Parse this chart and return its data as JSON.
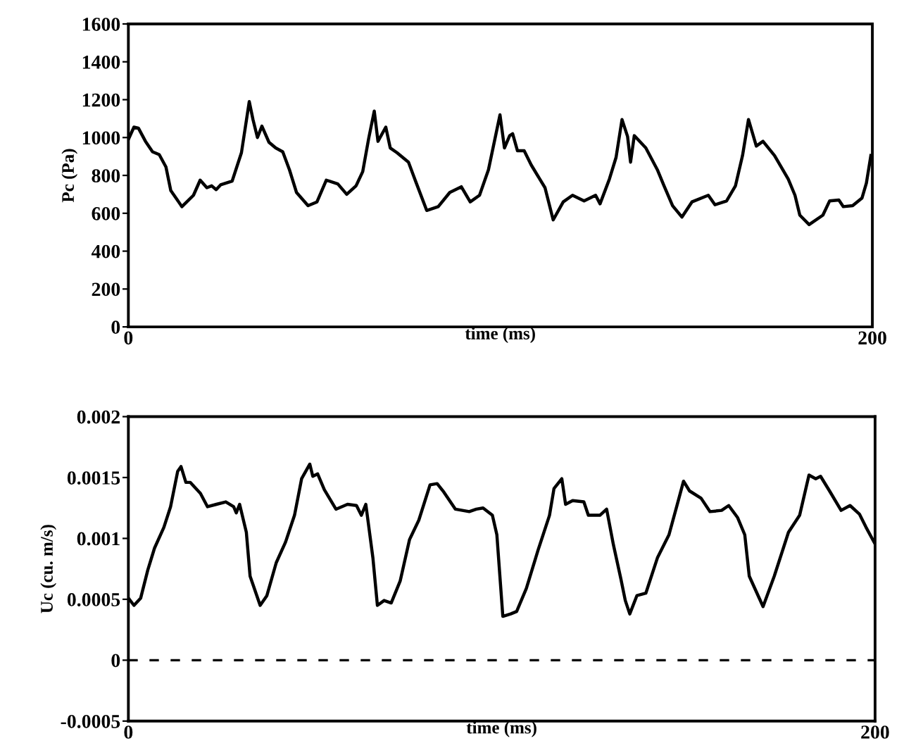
{
  "chart_data": [
    {
      "type": "line",
      "xlabel": "time (ms)",
      "ylabel": "Pc (Pa)",
      "xlim": [
        0,
        200
      ],
      "xticks": [
        0,
        200
      ],
      "ylim": [
        0,
        1600
      ],
      "yticks": [
        0,
        200,
        400,
        600,
        800,
        1000,
        1200,
        1400,
        1600
      ],
      "grid": false,
      "legend": false,
      "marker": "none",
      "line_style": "solid",
      "series": [
        {
          "color": "#000000",
          "x": [
            0,
            1.5,
            2.7,
            4.6,
            6.5,
            8.3,
            10.1,
            11.4,
            14.4,
            17.5,
            19.3,
            21.1,
            22.4,
            23.6,
            24.8,
            27.9,
            30.4,
            32.5,
            33.5,
            34.7,
            35.9,
            37.8,
            39.6,
            41.5,
            43.3,
            45.2,
            48.3,
            50.7,
            53.2,
            56.3,
            58.7,
            61.2,
            63.0,
            64.6,
            66.1,
            67.1,
            69.2,
            70.4,
            72.2,
            75.3,
            77.2,
            80.2,
            83.3,
            86.4,
            89.5,
            91.9,
            94.4,
            96.8,
            99.9,
            101.1,
            102.5,
            103.3,
            104.6,
            106.4,
            108.3,
            112.0,
            114.2,
            116.9,
            119.4,
            122.5,
            125.6,
            126.8,
            129.3,
            131.1,
            132.7,
            134.2,
            135.0,
            136.0,
            139.1,
            142.2,
            144.0,
            146.3,
            148.8,
            151.5,
            155.9,
            157.7,
            160.8,
            163.2,
            165.1,
            166.7,
            168.8,
            170.6,
            173.7,
            177.4,
            179.2,
            180.5,
            183.0,
            186.7,
            188.5,
            191.0,
            192.2,
            194.7,
            197.2,
            198.4,
            199.6
          ],
          "values": [
            990,
            1055,
            1050,
            980,
            925,
            910,
            845,
            720,
            635,
            695,
            775,
            735,
            745,
            725,
            750,
            770,
            920,
            1190,
            1095,
            1000,
            1060,
            975,
            945,
            925,
            830,
            710,
            640,
            660,
            775,
            755,
            700,
            745,
            820,
            995,
            1140,
            980,
            1055,
            945,
            920,
            870,
            770,
            615,
            635,
            710,
            740,
            660,
            695,
            830,
            1120,
            945,
            1010,
            1020,
            930,
            930,
            855,
            735,
            565,
            660,
            695,
            665,
            695,
            650,
            780,
            895,
            1095,
            1005,
            870,
            1010,
            945,
            830,
            745,
            640,
            580,
            660,
            695,
            645,
            665,
            745,
            905,
            1095,
            955,
            980,
            905,
            780,
            695,
            590,
            540,
            590,
            665,
            670,
            635,
            640,
            680,
            760,
            905
          ]
        }
      ]
    },
    {
      "type": "line",
      "xlabel": "time (ms)",
      "ylabel": "Uc (cu. m/s)",
      "xlim": [
        0,
        200
      ],
      "xticks": [
        0,
        200
      ],
      "ylim": [
        -0.0005,
        0.002
      ],
      "yticks": [
        -0.0005,
        0,
        0.0005,
        0.001,
        0.0015,
        0.002
      ],
      "grid": false,
      "legend": false,
      "marker": "none",
      "line_style": "solid",
      "ref_lines": [
        {
          "axis": "y",
          "value": 0,
          "line_style": "dashed",
          "color": "#000000"
        }
      ],
      "series": [
        {
          "color": "#000000",
          "x": [
            0,
            1.5,
            3.3,
            5.2,
            7.0,
            9.5,
            11.3,
            13.2,
            14.1,
            15.4,
            16.6,
            19.3,
            21.2,
            23.6,
            26.1,
            28.2,
            28.9,
            29.8,
            31.6,
            32.6,
            35.3,
            37.1,
            39.6,
            42.1,
            44.5,
            46.4,
            48.6,
            49.4,
            50.7,
            52.5,
            55.6,
            58.7,
            61.1,
            62.4,
            63.6,
            65.5,
            66.7,
            68.5,
            70.4,
            72.8,
            75.3,
            77.8,
            80.8,
            82.7,
            84.5,
            87.6,
            91.3,
            93.2,
            95.0,
            97.5,
            98.7,
            100.3,
            102.4,
            104.0,
            106.6,
            109.7,
            112.8,
            114.0,
            116.1,
            117.1,
            119.0,
            122.0,
            123.2,
            126.3,
            128.1,
            129.9,
            131.9,
            133.1,
            134.3,
            136.2,
            138.6,
            141.7,
            144.8,
            147.2,
            148.7,
            150.3,
            153.4,
            155.8,
            158.9,
            160.8,
            163.2,
            165.1,
            166.3,
            170.0,
            173.0,
            176.8,
            179.8,
            182.3,
            184.1,
            185.4,
            187.8,
            190.9,
            193.3,
            195.8,
            197.6,
            199.9
          ],
          "values": [
            0.00051,
            0.00045,
            0.00051,
            0.00074,
            0.00092,
            0.00109,
            0.00126,
            0.00155,
            0.00159,
            0.00146,
            0.00146,
            0.00137,
            0.00126,
            0.00128,
            0.0013,
            0.00126,
            0.00121,
            0.00128,
            0.00105,
            0.00069,
            0.00045,
            0.00053,
            0.0008,
            0.00097,
            0.00119,
            0.00149,
            0.00161,
            0.00151,
            0.00153,
            0.0014,
            0.00124,
            0.00128,
            0.00127,
            0.00119,
            0.00128,
            0.00084,
            0.00045,
            0.00049,
            0.00047,
            0.00065,
            0.00099,
            0.00115,
            0.00144,
            0.00145,
            0.00138,
            0.00124,
            0.00122,
            0.00124,
            0.00125,
            0.00119,
            0.00103,
            0.00036,
            0.00038,
            0.0004,
            0.00059,
            0.0009,
            0.00119,
            0.00141,
            0.00149,
            0.00128,
            0.00131,
            0.0013,
            0.00119,
            0.00119,
            0.00124,
            0.00095,
            0.00067,
            0.00049,
            0.00038,
            0.00053,
            0.00055,
            0.00084,
            0.00103,
            0.0013,
            0.00147,
            0.00139,
            0.00133,
            0.00122,
            0.00123,
            0.00127,
            0.00117,
            0.00103,
            0.00069,
            0.00044,
            0.00069,
            0.00105,
            0.00119,
            0.00152,
            0.00149,
            0.00151,
            0.00139,
            0.00123,
            0.00127,
            0.0012,
            0.00109,
            0.00096
          ]
        }
      ]
    }
  ]
}
